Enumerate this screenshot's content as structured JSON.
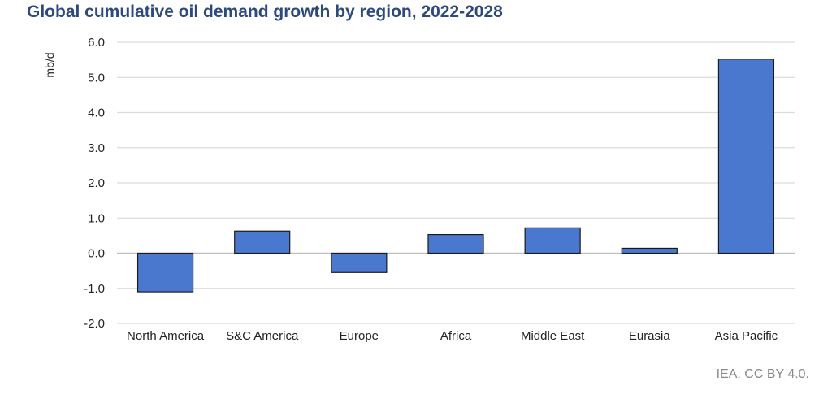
{
  "chart_data": {
    "type": "bar",
    "title": "Global cumulative oil demand growth by region, 2022-2028",
    "xlabel": "",
    "ylabel": "mb/d",
    "categories": [
      "North America",
      "S&C America",
      "Europe",
      "Africa",
      "Middle East",
      "Eurasia",
      "Asia Pacific"
    ],
    "values": [
      -1.1,
      0.63,
      -0.55,
      0.53,
      0.72,
      0.14,
      5.52
    ],
    "ylim": [
      -2.0,
      6.0
    ],
    "yticks": [
      "6.0",
      "5.0",
      "4.0",
      "3.0",
      "2.0",
      "1.0",
      "0.0",
      "-1.0",
      "-2.0"
    ],
    "ytick_values": [
      6,
      5,
      4,
      3,
      2,
      1,
      0,
      -1,
      -2
    ],
    "grid": true,
    "legend": "none",
    "bar_color": "#4a78cf",
    "bar_edge_color": "#1a1a1a",
    "source": "IEA. CC BY 4.0."
  }
}
